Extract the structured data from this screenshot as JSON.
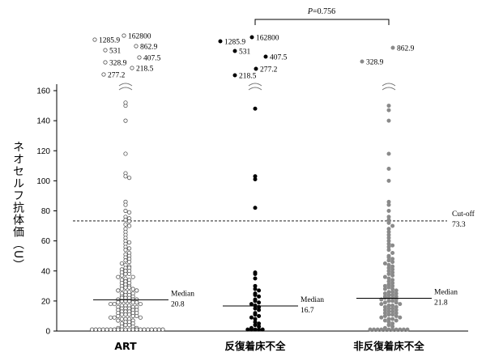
{
  "chart_data": {
    "type": "scatter",
    "ylabel": "ネオセルフ抗体価（U）",
    "ylim": [
      0,
      160
    ],
    "y_ticks": [
      "0",
      "20",
      "40",
      "60",
      "80",
      "100",
      "120",
      "140",
      "160"
    ],
    "cutoff": {
      "label": "Cut-off",
      "value_text": "73.3",
      "value": 73.3
    },
    "p_value": "P=0.756",
    "groups": [
      {
        "name": "ART",
        "marker": "open",
        "color": "#555555",
        "median_label": "Median",
        "median_text": "20.8",
        "median": 20.8,
        "high_values": [
          "1285.9",
          "162800",
          "531",
          "862.9",
          "328.9",
          "407.5",
          "277.2",
          "218.5"
        ],
        "values": [
          150,
          152,
          140,
          118,
          105,
          103,
          102,
          86,
          84,
          80,
          79,
          76,
          75,
          74,
          73,
          71,
          70,
          68,
          66,
          64,
          62,
          60,
          59,
          58,
          56,
          55,
          54,
          52,
          51,
          50,
          49,
          48,
          47,
          46,
          45,
          44,
          43,
          42,
          42,
          41,
          40,
          40,
          39,
          38,
          38,
          37,
          36,
          36,
          35,
          34,
          34,
          33,
          32,
          32,
          31,
          30,
          30,
          29,
          29,
          28,
          28,
          27,
          27,
          26,
          26,
          25,
          25,
          24,
          24,
          23,
          23,
          22,
          22,
          22,
          21,
          21,
          21,
          20,
          20,
          20,
          19,
          19,
          19,
          18,
          18,
          18,
          17,
          17,
          17,
          16,
          16,
          16,
          15,
          15,
          15,
          14,
          14,
          14,
          13,
          13,
          13,
          12,
          12,
          12,
          11,
          11,
          11,
          10,
          10,
          10,
          9,
          9,
          9,
          8,
          8,
          8,
          7,
          7,
          6,
          6,
          5,
          5,
          4,
          4,
          3,
          3,
          2,
          2,
          1,
          1,
          1,
          1,
          1,
          1,
          1,
          1,
          1,
          1,
          1,
          1,
          1,
          1,
          1,
          1,
          1,
          1,
          1,
          1
        ]
      },
      {
        "name": "反復着床不全",
        "marker": "filled",
        "color": "#000000",
        "median_label": "Median",
        "median_text": "16.7",
        "median": 16.7,
        "high_values": [
          "1285.9",
          "162800",
          "531",
          "407.5",
          "277.2",
          "218.5"
        ],
        "values": [
          148,
          103,
          101,
          82,
          39,
          38,
          35,
          30,
          28,
          27,
          25,
          24,
          23,
          21,
          20,
          19,
          18,
          17,
          16,
          15,
          14,
          12,
          11,
          10,
          9,
          8,
          6,
          5,
          4,
          3,
          2,
          1,
          1,
          1,
          1,
          1
        ]
      },
      {
        "name": "非反復着床不全",
        "marker": "filled",
        "color": "#8a8a8a",
        "median_label": "Median",
        "median_text": "21.8",
        "median": 21.8,
        "high_values": [
          "862.9",
          "328.9"
        ],
        "values": [
          150,
          147,
          140,
          118,
          108,
          100,
          86,
          84,
          80,
          76,
          74,
          72,
          70,
          68,
          66,
          64,
          62,
          60,
          58,
          57,
          56,
          54,
          52,
          50,
          49,
          48,
          47,
          46,
          45,
          44,
          43,
          42,
          41,
          40,
          39,
          38,
          37,
          36,
          35,
          34,
          33,
          32,
          31,
          30,
          30,
          29,
          28,
          28,
          27,
          26,
          26,
          25,
          25,
          24,
          24,
          23,
          23,
          22,
          22,
          22,
          21,
          21,
          20,
          20,
          19,
          19,
          18,
          18,
          17,
          17,
          16,
          16,
          15,
          15,
          14,
          14,
          13,
          13,
          12,
          12,
          11,
          11,
          10,
          10,
          9,
          9,
          8,
          8,
          7,
          7,
          6,
          5,
          4,
          3,
          2,
          1,
          1,
          1,
          1,
          1,
          1,
          1,
          1,
          1,
          1,
          1
        ]
      }
    ]
  }
}
